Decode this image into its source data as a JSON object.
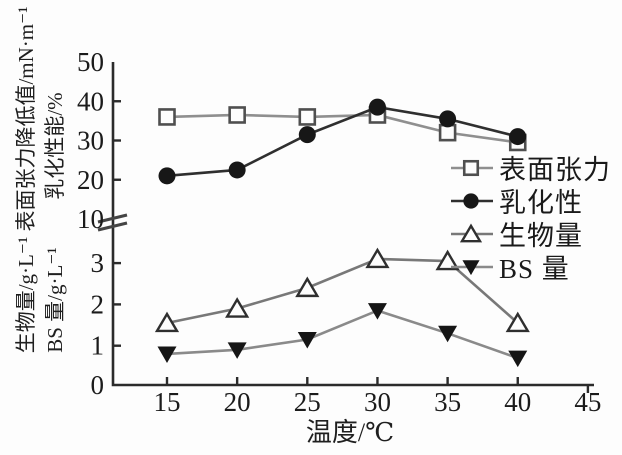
{
  "figure": {
    "background": "#fdfdfd"
  },
  "colors": {
    "axis": "#2b2b2b",
    "text": "#1b1b1b",
    "break_mark": "#444444",
    "background": "#fdfdfd"
  },
  "axis_labels": {
    "left_outer_top": "表面张力降低值/mN·m⁻¹",
    "left_inner_top": "乳化性能/%",
    "left_outer_bottom": "生物量/g·L⁻¹",
    "left_inner_bottom": "BS 量/g·L⁻¹"
  },
  "chart_data": {
    "type": "line",
    "title": "",
    "xlabel": "温度/℃",
    "grid": false,
    "legend_position": "right",
    "axis_break": true,
    "x": [
      15,
      20,
      25,
      30,
      35,
      40
    ],
    "x_ticks": [
      15,
      20,
      25,
      30,
      35,
      40,
      45
    ],
    "x_range": [
      11,
      45
    ],
    "y_axis_upper": {
      "ticks": [
        10,
        20,
        30,
        40,
        50
      ],
      "range": [
        10,
        50
      ],
      "quantities": [
        "表面张力降低值/mN·m⁻¹",
        "乳化性能/%"
      ]
    },
    "y_axis_lower": {
      "ticks": [
        0,
        1,
        2,
        3
      ],
      "range": [
        0,
        3.2
      ],
      "quantities": [
        "生物量/g·L⁻¹",
        "BS量/g·L⁻¹"
      ]
    },
    "series": [
      {
        "name": "表面张力",
        "axis": "upper",
        "marker": "square-open",
        "values": [
          36,
          36.5,
          36,
          36.5,
          32,
          29.5
        ],
        "line_color": "#8f8f8f",
        "marker_color": "#4f4f4f"
      },
      {
        "name": "乳化性",
        "axis": "upper",
        "marker": "circle-filled",
        "values": [
          21,
          22.5,
          31.5,
          38.5,
          35.5,
          31
        ],
        "line_color": "#2f2f2f",
        "marker_color": "#171717"
      },
      {
        "name": "生物量",
        "axis": "lower",
        "marker": "triangle-up-open",
        "values": [
          1.55,
          1.9,
          2.4,
          3.1,
          3.05,
          1.55
        ],
        "line_color": "#787878",
        "marker_color": "#2f2f2f"
      },
      {
        "name": "BS 量",
        "axis": "lower",
        "marker": "triangle-down-filled",
        "values": [
          0.8,
          0.9,
          1.15,
          1.85,
          1.3,
          0.7
        ],
        "line_color": "#8a8a8a",
        "marker_color": "#151515"
      }
    ]
  }
}
